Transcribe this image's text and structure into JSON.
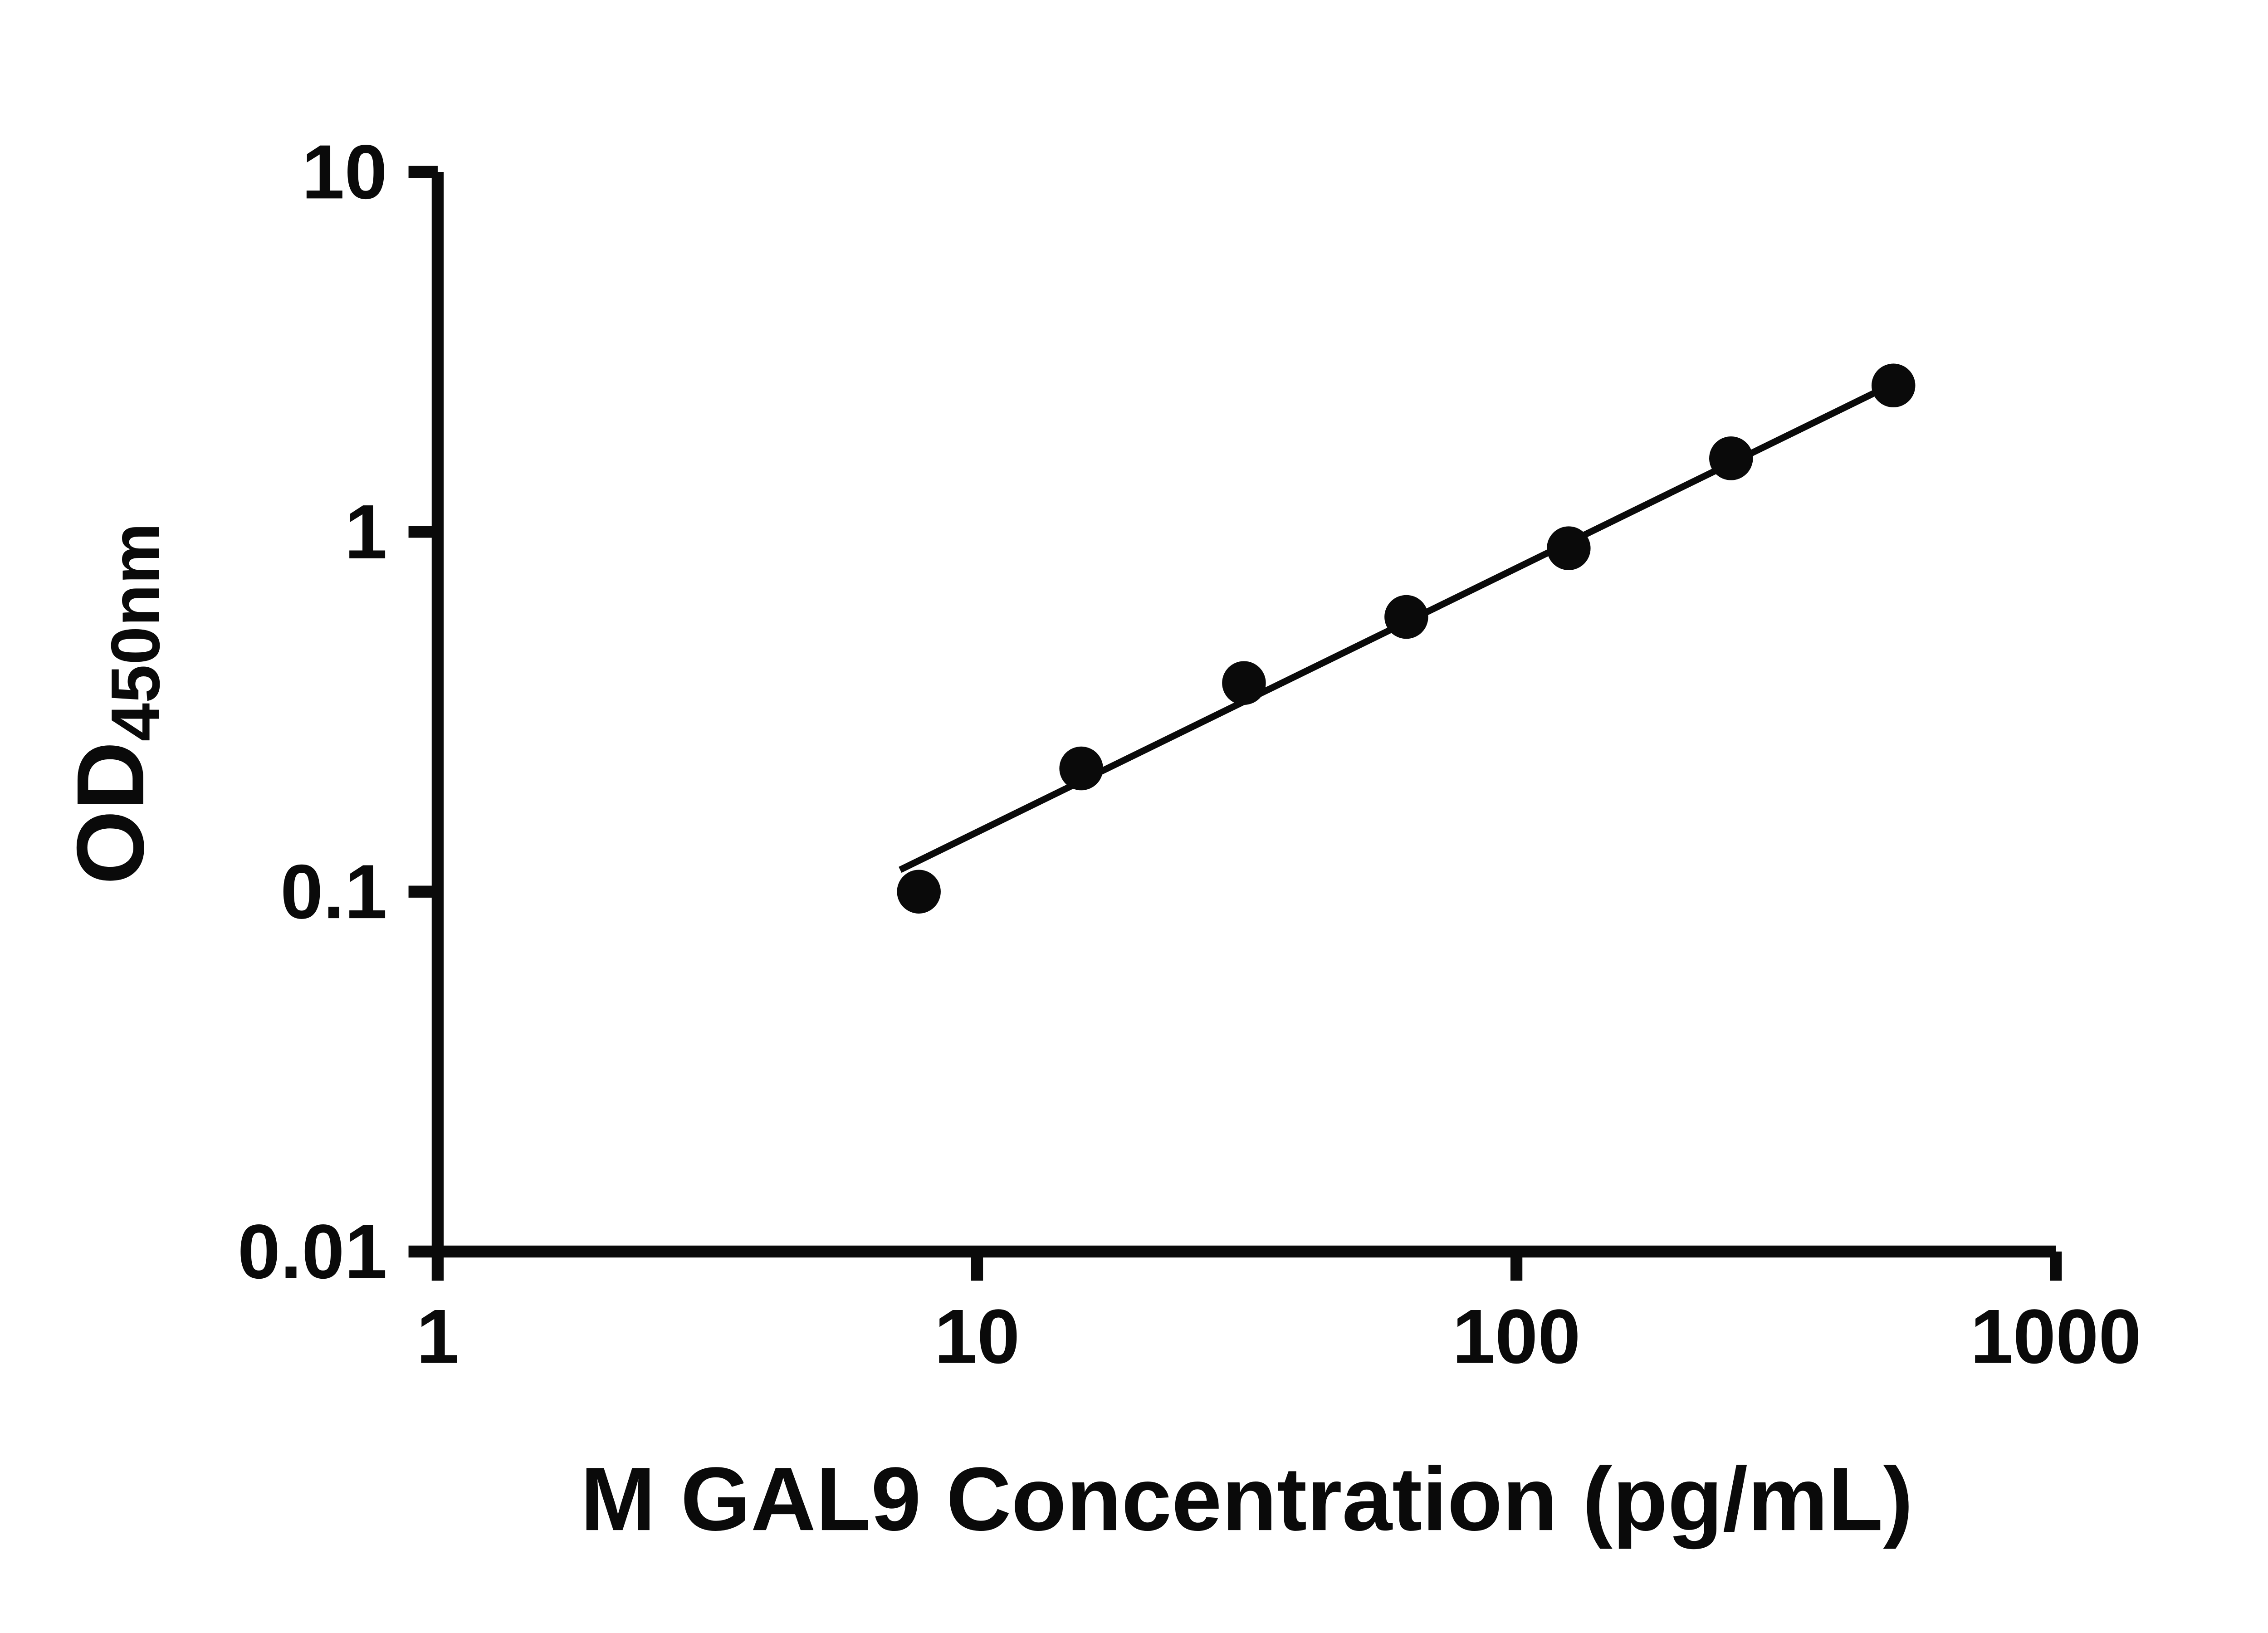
{
  "figure": {
    "background_color": "#ffffff",
    "axis_color": "#0a0a0a",
    "marker_color": "#0a0a0a",
    "line_color": "#0a0a0a"
  },
  "chart_data": {
    "type": "scatter",
    "title": "",
    "xlabel": "M GAL9 Concentration (pg/mL)",
    "ylabel": "OD450nm",
    "ylabel_main": "OD",
    "ylabel_subscript": "450nm",
    "x_scale": "log",
    "y_scale": "log",
    "xlim": [
      1,
      1000
    ],
    "ylim": [
      0.01,
      10
    ],
    "grid": false,
    "legend": "none",
    "x_ticks": [
      {
        "value": 1,
        "label": "1"
      },
      {
        "value": 10,
        "label": "10"
      },
      {
        "value": 100,
        "label": "100"
      },
      {
        "value": 1000,
        "label": "1000"
      }
    ],
    "y_ticks": [
      {
        "value": 0.01,
        "label": "0.01"
      },
      {
        "value": 0.1,
        "label": "0.1"
      },
      {
        "value": 1,
        "label": "1"
      },
      {
        "value": 10,
        "label": "10"
      }
    ],
    "series": [
      {
        "marker": "circle",
        "color": "#0a0a0a",
        "points": [
          {
            "x": 7.8,
            "y": 0.1
          },
          {
            "x": 15.6,
            "y": 0.22
          },
          {
            "x": 31.25,
            "y": 0.38
          },
          {
            "x": 62.5,
            "y": 0.58
          },
          {
            "x": 125,
            "y": 0.9
          },
          {
            "x": 250,
            "y": 1.6
          },
          {
            "x": 500,
            "y": 2.55
          }
        ]
      }
    ],
    "trend_line": {
      "x1": 7.2,
      "y1": 0.115,
      "x2": 500,
      "y2": 2.58,
      "color": "#0a0a0a"
    }
  }
}
